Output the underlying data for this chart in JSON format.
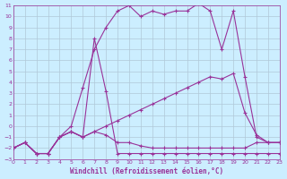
{
  "bg_color": "#cceeff",
  "grid_color": "#b0c8d8",
  "line_color": "#993399",
  "xlabel": "Windchill (Refroidissement éolien,°C)",
  "xlabel_color": "#993399",
  "xmin": 0,
  "xmax": 23,
  "ymin": -3,
  "ymax": 11,
  "series": [
    {
      "x": [
        0,
        1,
        2,
        3,
        4,
        5,
        6,
        7,
        8,
        9,
        10,
        11,
        12,
        13,
        14,
        15,
        16,
        17,
        18,
        19,
        20,
        21,
        22,
        23
      ],
      "y": [
        -2,
        -1.5,
        -2.5,
        -2.5,
        -1.0,
        0.0,
        3.5,
        7.0,
        9.0,
        10.5,
        11.0,
        10.0,
        10.5,
        10.2,
        10.5,
        10.5,
        11.2,
        10.5,
        7.0,
        10.5,
        4.5,
        -1.0,
        -1.5,
        -1.5
      ]
    },
    {
      "x": [
        0,
        1,
        2,
        3,
        4,
        5,
        6,
        7,
        8,
        9,
        10,
        11,
        12,
        13,
        14,
        15,
        16,
        17,
        18,
        19,
        20,
        21,
        22,
        23
      ],
      "y": [
        -2,
        -1.5,
        -2.5,
        -2.5,
        -1.0,
        -0.5,
        -1.0,
        8.0,
        3.2,
        -2.5,
        -2.5,
        -2.5,
        -2.5,
        -2.5,
        -2.5,
        -2.5,
        -2.5,
        -2.5,
        -2.5,
        -2.5,
        -2.5,
        -2.5,
        -2.5,
        -2.5
      ]
    },
    {
      "x": [
        0,
        1,
        2,
        3,
        4,
        5,
        6,
        7,
        8,
        9,
        10,
        11,
        12,
        13,
        14,
        15,
        16,
        17,
        18,
        19,
        20,
        21,
        22,
        23
      ],
      "y": [
        -2,
        -1.5,
        -2.5,
        -2.5,
        -1.0,
        -0.5,
        -1.0,
        -0.5,
        0.0,
        0.5,
        1.0,
        1.5,
        2.0,
        2.5,
        3.0,
        3.5,
        4.0,
        4.5,
        4.3,
        4.8,
        1.2,
        -0.8,
        -1.5,
        -1.5
      ]
    },
    {
      "x": [
        0,
        1,
        2,
        3,
        4,
        5,
        6,
        7,
        8,
        9,
        10,
        11,
        12,
        13,
        14,
        15,
        16,
        17,
        18,
        19,
        20,
        21,
        22,
        23
      ],
      "y": [
        -2,
        -1.5,
        -2.5,
        -2.5,
        -1.0,
        -0.5,
        -1.0,
        -0.5,
        -0.8,
        -1.5,
        -1.5,
        -1.8,
        -2.0,
        -2.0,
        -2.0,
        -2.0,
        -2.0,
        -2.0,
        -2.0,
        -2.0,
        -2.0,
        -1.5,
        -1.5,
        -1.5
      ]
    }
  ]
}
